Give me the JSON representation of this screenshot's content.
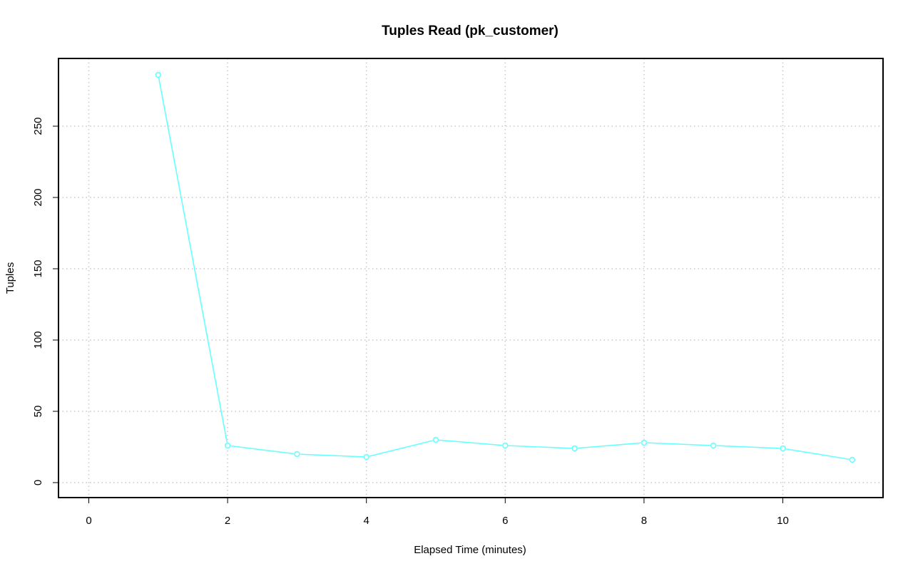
{
  "chart_data": {
    "type": "line",
    "title": "Tuples Read (pk_customer)",
    "xlabel": "Elapsed Time (minutes)",
    "ylabel": "Tuples",
    "xlim": [
      0,
      11
    ],
    "ylim": [
      0,
      286
    ],
    "x_ticks": [
      0,
      2,
      4,
      6,
      8,
      10
    ],
    "y_ticks": [
      0,
      50,
      100,
      150,
      200,
      250
    ],
    "grid": true,
    "series": [
      {
        "color": "#66ffff",
        "marker": "open-circle",
        "x": [
          1,
          2,
          3,
          4,
          5,
          6,
          7,
          8,
          9,
          10,
          11
        ],
        "y": [
          286,
          26,
          20,
          18,
          30,
          26,
          24,
          28,
          26,
          24,
          16
        ]
      }
    ]
  }
}
